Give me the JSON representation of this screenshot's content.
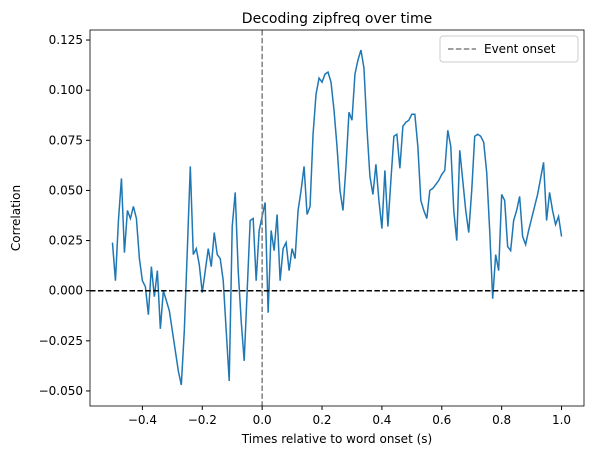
{
  "chart_data": {
    "type": "line",
    "title": "Decoding zipfreq over time",
    "xlabel": "Times relative to word onset (s)",
    "ylabel": "Correlation",
    "x": [
      -0.5,
      -0.49,
      -0.48,
      -0.47,
      -0.46,
      -0.45,
      -0.44,
      -0.43,
      -0.42,
      -0.41,
      -0.4,
      -0.39,
      -0.38,
      -0.37,
      -0.36,
      -0.35,
      -0.34,
      -0.33,
      -0.32,
      -0.31,
      -0.3,
      -0.29,
      -0.28,
      -0.27,
      -0.26,
      -0.25,
      -0.24,
      -0.23,
      -0.22,
      -0.21,
      -0.2,
      -0.19,
      -0.18,
      -0.17,
      -0.16,
      -0.15,
      -0.14,
      -0.13,
      -0.12,
      -0.11,
      -0.1,
      -0.09,
      -0.08,
      -0.07,
      -0.06,
      -0.05,
      -0.04,
      -0.03,
      -0.02,
      -0.01,
      0,
      0.01,
      0.02,
      0.03,
      0.04,
      0.05,
      0.06,
      0.07,
      0.08,
      0.09,
      0.1,
      0.11,
      0.12,
      0.13,
      0.14,
      0.15,
      0.16,
      0.17,
      0.18,
      0.19,
      0.2,
      0.21,
      0.22,
      0.23,
      0.24,
      0.25,
      0.26,
      0.27,
      0.28,
      0.29,
      0.3,
      0.31,
      0.32,
      0.33,
      0.34,
      0.35,
      0.36,
      0.37,
      0.38,
      0.39,
      0.4,
      0.41,
      0.42,
      0.43,
      0.44,
      0.45,
      0.46,
      0.47,
      0.48,
      0.49,
      0.5,
      0.51,
      0.52,
      0.53,
      0.54,
      0.55,
      0.56,
      0.57,
      0.58,
      0.59,
      0.6,
      0.61,
      0.62,
      0.63,
      0.64,
      0.65,
      0.66,
      0.67,
      0.68,
      0.69,
      0.7,
      0.71,
      0.72,
      0.73,
      0.74,
      0.75,
      0.76,
      0.77,
      0.78,
      0.79,
      0.8,
      0.81,
      0.82,
      0.83,
      0.84,
      0.85,
      0.86,
      0.87,
      0.88,
      0.89,
      0.9,
      0.91,
      0.92,
      0.93,
      0.94,
      0.95,
      0.96,
      0.97,
      0.98,
      0.99,
      1.0
    ],
    "series": [
      {
        "name": "Correlation",
        "color": "#1f77b4",
        "values": [
          0.024,
          0.005,
          0.035,
          0.056,
          0.019,
          0.04,
          0.036,
          0.042,
          0.036,
          0.016,
          0.005,
          0.002,
          -0.012,
          0.012,
          -0.003,
          0.01,
          -0.019,
          0.0,
          -0.005,
          -0.01,
          -0.02,
          -0.03,
          -0.04,
          -0.047,
          -0.02,
          0.02,
          0.062,
          0.018,
          0.021,
          0.013,
          -0.001,
          0.01,
          0.021,
          0.012,
          0.029,
          0.018,
          0.016,
          0.005,
          -0.02,
          -0.045,
          0.032,
          0.049,
          0.01,
          -0.015,
          -0.035,
          0.0,
          0.035,
          0.036,
          0.005,
          0.03,
          0.037,
          0.044,
          -0.011,
          0.03,
          0.02,
          0.038,
          0.005,
          0.021,
          0.024,
          0.01,
          0.021,
          0.016,
          0.04,
          0.05,
          0.062,
          0.038,
          0.042,
          0.078,
          0.098,
          0.106,
          0.104,
          0.108,
          0.109,
          0.104,
          0.09,
          0.072,
          0.05,
          0.04,
          0.062,
          0.089,
          0.085,
          0.108,
          0.115,
          0.12,
          0.111,
          0.081,
          0.057,
          0.048,
          0.063,
          0.045,
          0.031,
          0.06,
          0.032,
          0.055,
          0.077,
          0.078,
          0.061,
          0.082,
          0.084,
          0.085,
          0.088,
          0.088,
          0.072,
          0.045,
          0.04,
          0.036,
          0.05,
          0.051,
          0.053,
          0.055,
          0.058,
          0.06,
          0.08,
          0.072,
          0.04,
          0.025,
          0.07,
          0.055,
          0.04,
          0.029,
          0.05,
          0.077,
          0.078,
          0.077,
          0.074,
          0.059,
          0.03,
          -0.004,
          0.018,
          0.01,
          0.048,
          0.045,
          0.022,
          0.02,
          0.035,
          0.04,
          0.047,
          0.027,
          0.023,
          0.03,
          0.036,
          0.042,
          0.048,
          0.056,
          0.064,
          0.035,
          0.049,
          0.04,
          0.033,
          0.037,
          0.027
        ]
      }
    ],
    "vline": {
      "x": 0,
      "label": "Event onset",
      "color": "#808080"
    },
    "hline": {
      "y": 0,
      "color": "#000000"
    },
    "legend": "upper right",
    "xlim": [
      -0.575,
      1.075
    ],
    "ylim": [
      -0.0575,
      0.13
    ],
    "xticks": [
      {
        "value": -0.4,
        "label": "−0.4"
      },
      {
        "value": -0.2,
        "label": "−0.2"
      },
      {
        "value": 0,
        "label": "0.0"
      },
      {
        "value": 0.2,
        "label": "0.2"
      },
      {
        "value": 0.4,
        "label": "0.4"
      },
      {
        "value": 0.6,
        "label": "0.6"
      },
      {
        "value": 0.8,
        "label": "0.8"
      },
      {
        "value": 1.0,
        "label": "1.0"
      }
    ],
    "yticks": [
      {
        "value": -0.05,
        "label": "−0.050"
      },
      {
        "value": -0.025,
        "label": "−0.025"
      },
      {
        "value": 0,
        "label": "0.000"
      },
      {
        "value": 0.025,
        "label": "0.025"
      },
      {
        "value": 0.05,
        "label": "0.050"
      },
      {
        "value": 0.075,
        "label": "0.075"
      },
      {
        "value": 0.1,
        "label": "0.100"
      },
      {
        "value": 0.125,
        "label": "0.125"
      }
    ]
  }
}
